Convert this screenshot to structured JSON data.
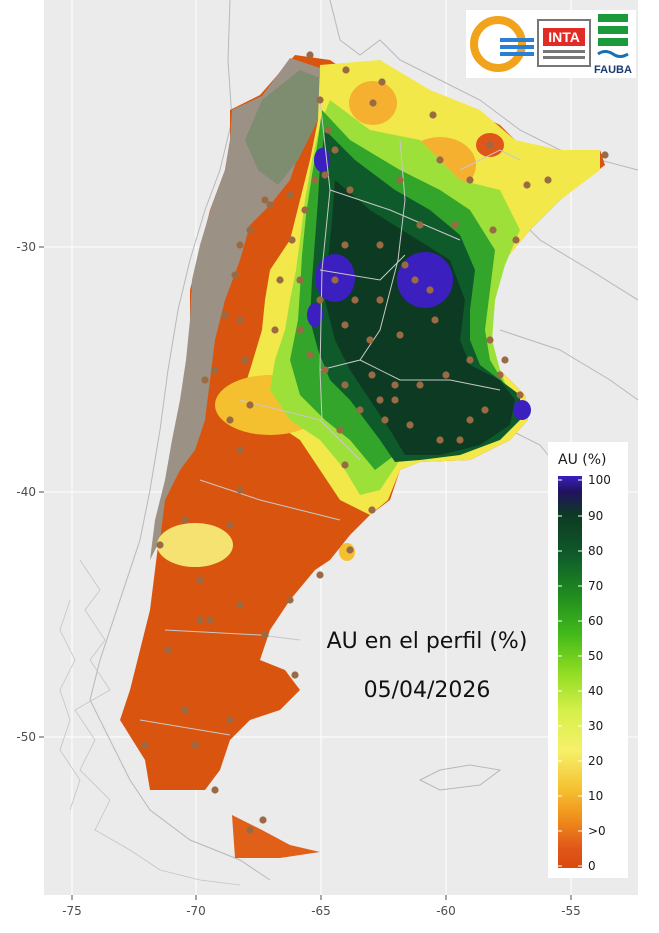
{
  "map": {
    "title": "AU en el perfil (%)",
    "date": "05/04/2026",
    "x_ticks": [
      "-75",
      "-70",
      "-65",
      "-60",
      "-55"
    ],
    "y_ticks": [
      "-30",
      "-40",
      "-50"
    ]
  },
  "legend": {
    "title": "AU (%)",
    "labels": [
      "100",
      "90",
      "80",
      "70",
      "60",
      "50",
      "40",
      "30",
      "20",
      "10",
      ">0",
      "0"
    ],
    "colors": [
      "#3b1fbf",
      "#0d3a22",
      "#0f5a2a",
      "#1e8a1f",
      "#41b81a",
      "#8fdc22",
      "#d6f04a",
      "#f6f06a",
      "#f5c030",
      "#ef8a1a",
      "#e0561a",
      "#d94a0c"
    ]
  },
  "logos": {
    "inta": "INTA",
    "fauba": "FAUBA"
  },
  "colors": {
    "panel_bg": "#ebebeb",
    "dry": "#d9550f",
    "mountain_gray": "#9c9185",
    "station_dot": "#9a6a45",
    "border_line": "#bdbdbd"
  }
}
